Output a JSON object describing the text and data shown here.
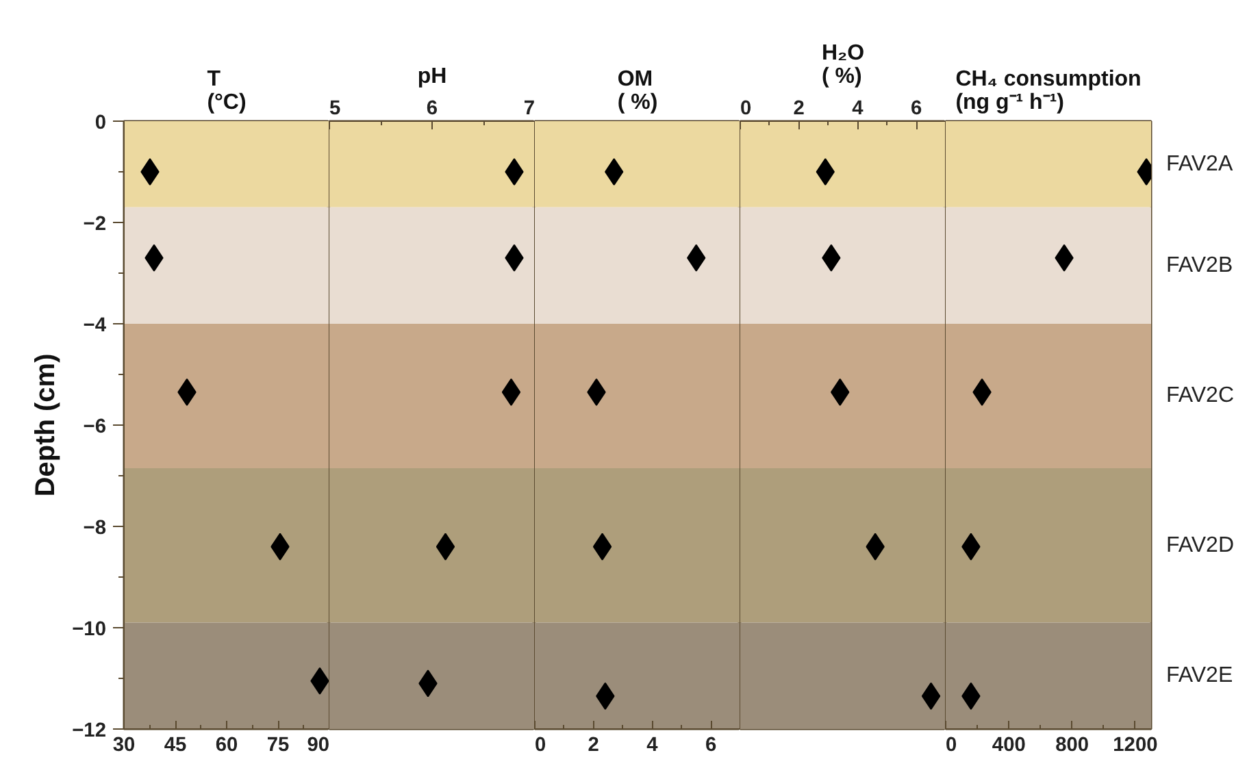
{
  "chart_data": [
    {
      "type": "scatter",
      "title": "T\n(°C)",
      "ylabel": "Depth (cm)",
      "xlim": [
        30,
        90
      ],
      "xticks": [
        30,
        45,
        60,
        75,
        90
      ],
      "ylim": [
        -12,
        0
      ],
      "yticks": [
        0,
        -2,
        -4,
        -6,
        -8,
        -10,
        -12
      ],
      "marker": "diamond",
      "bands": [
        {
          "axis": "y",
          "from": 0,
          "to": -1.7,
          "color": "#ecd9a0"
        },
        {
          "axis": "y",
          "from": -1.7,
          "to": -4.0,
          "color": "#e9ddd2"
        },
        {
          "axis": "y",
          "from": -4.0,
          "to": -6.85,
          "color": "#c8a98a"
        },
        {
          "axis": "y",
          "from": -6.85,
          "to": -9.9,
          "color": "#ae9e7b"
        },
        {
          "axis": "y",
          "from": -9.9,
          "to": -12,
          "color": "#9b8d7a"
        }
      ],
      "series": [
        {
          "color": "#000000",
          "x": [
            37.6,
            38.8,
            48.4,
            75.6,
            87.2
          ],
          "values": [
            -1.0,
            -2.7,
            -5.35,
            -8.4,
            -11.05
          ]
        }
      ]
    },
    {
      "type": "scatter",
      "title": "pH",
      "xlim": [
        5,
        7
      ],
      "xticks": [
        5,
        6,
        7
      ],
      "ylim": [
        -12,
        0
      ],
      "tick_labels": "x",
      "marker": "diamond",
      "bands": [
        {
          "axis": "y",
          "from": 0,
          "to": -1.7,
          "color": "#ecd9a0"
        },
        {
          "axis": "y",
          "from": -1.7,
          "to": -4.0,
          "color": "#e9ddd2"
        },
        {
          "axis": "y",
          "from": -4.0,
          "to": -6.85,
          "color": "#c8a98a"
        },
        {
          "axis": "y",
          "from": -6.85,
          "to": -9.9,
          "color": "#ae9e7b"
        },
        {
          "axis": "y",
          "from": -9.9,
          "to": -12,
          "color": "#9b8d7a"
        }
      ],
      "series": [
        {
          "color": "#000000",
          "x": [
            6.8,
            6.8,
            6.77,
            6.13,
            5.96
          ],
          "values": [
            -1.0,
            -2.7,
            -5.35,
            -8.4,
            -11.1
          ]
        }
      ]
    },
    {
      "type": "scatter",
      "title": "OM\n( %)",
      "xlim": [
        0,
        7
      ],
      "xticks": [
        0,
        2,
        4,
        6
      ],
      "ylim": [
        -12,
        0
      ],
      "tick_labels": "x",
      "marker": "diamond",
      "bands": [
        {
          "axis": "y",
          "from": 0,
          "to": -1.7,
          "color": "#ecd9a0"
        },
        {
          "axis": "y",
          "from": -1.7,
          "to": -4.0,
          "color": "#e9ddd2"
        },
        {
          "axis": "y",
          "from": -4.0,
          "to": -6.85,
          "color": "#c8a98a"
        },
        {
          "axis": "y",
          "from": -6.85,
          "to": -9.9,
          "color": "#ae9e7b"
        },
        {
          "axis": "y",
          "from": -9.9,
          "to": -12,
          "color": "#9b8d7a"
        }
      ],
      "series": [
        {
          "color": "#000000",
          "x": [
            2.7,
            5.5,
            2.1,
            2.3,
            2.4
          ],
          "values": [
            -1.0,
            -2.7,
            -5.35,
            -8.4,
            -11.35
          ]
        }
      ]
    },
    {
      "type": "scatter",
      "title": "H₂O\n( %)",
      "xlim": [
        0,
        7
      ],
      "xticks": [
        0,
        2,
        4,
        6
      ],
      "ylim": [
        -12,
        0
      ],
      "tick_labels": "x",
      "marker": "diamond",
      "bands": [
        {
          "axis": "y",
          "from": 0,
          "to": -1.7,
          "color": "#ecd9a0"
        },
        {
          "axis": "y",
          "from": -1.7,
          "to": -4.0,
          "color": "#e9ddd2"
        },
        {
          "axis": "y",
          "from": -4.0,
          "to": -6.85,
          "color": "#c8a98a"
        },
        {
          "axis": "y",
          "from": -6.85,
          "to": -9.9,
          "color": "#ae9e7b"
        },
        {
          "axis": "y",
          "from": -9.9,
          "to": -12,
          "color": "#9b8d7a"
        }
      ],
      "series": [
        {
          "color": "#000000",
          "x": [
            2.9,
            3.1,
            3.4,
            4.6,
            6.5
          ],
          "values": [
            -1.0,
            -2.7,
            -5.35,
            -8.4,
            -11.35
          ]
        }
      ]
    },
    {
      "type": "scatter",
      "title": "CH₄ consumption\n(ng g⁻¹ h⁻¹)",
      "xlim": [
        0,
        1300
      ],
      "xticks": [
        0,
        400,
        800,
        1200
      ],
      "ylim": [
        -12,
        0
      ],
      "tick_labels": "x",
      "marker": "diamond",
      "bands": [
        {
          "axis": "y",
          "from": 0,
          "to": -1.7,
          "label": "FAV2A",
          "color": "#ecd9a0"
        },
        {
          "axis": "y",
          "from": -1.7,
          "to": -4.0,
          "label": "FAV2B",
          "color": "#e9ddd2"
        },
        {
          "axis": "y",
          "from": -4.0,
          "to": -6.85,
          "label": "FAV2C",
          "color": "#c8a98a"
        },
        {
          "axis": "y",
          "from": -6.85,
          "to": -9.9,
          "label": "FAV2D",
          "color": "#ae9e7b"
        },
        {
          "axis": "y",
          "from": -9.9,
          "to": -12,
          "label": "FAV2E",
          "color": "#9b8d7a"
        }
      ],
      "series": [
        {
          "color": "#000000",
          "x": [
            1270,
            750,
            230,
            160,
            160
          ],
          "values": [
            -1.0,
            -2.7,
            -5.35,
            -8.4,
            -11.35
          ]
        }
      ]
    }
  ]
}
